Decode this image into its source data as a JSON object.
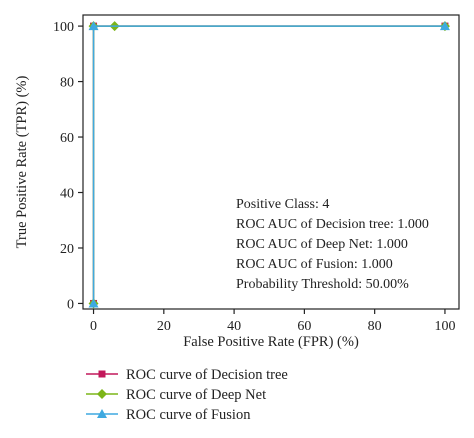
{
  "chart_data": {
    "type": "line",
    "title": "",
    "xlabel": "False Positive Rate (FPR) (%)",
    "ylabel": "True Positive Rate (TPR) (%)",
    "xlim": [
      -3,
      104
    ],
    "ylim": [
      -2,
      104
    ],
    "xticks": [
      0,
      20,
      40,
      60,
      80,
      100
    ],
    "yticks": [
      0,
      20,
      40,
      60,
      80,
      100
    ],
    "grid": false,
    "legend_position": "bottom",
    "series": [
      {
        "name": "ROC curve of Decision tree",
        "color": "#c2185b",
        "marker": "square",
        "x": [
          0,
          0,
          100
        ],
        "y": [
          0,
          100,
          100
        ]
      },
      {
        "name": "ROC curve of Deep Net",
        "color": "#7cb518",
        "marker": "diamond",
        "x": [
          0,
          0,
          6,
          100
        ],
        "y": [
          0,
          100,
          100,
          100
        ]
      },
      {
        "name": "ROC curve of Fusion",
        "color": "#3fa9e0",
        "marker": "triangle",
        "x": [
          0,
          0,
          100
        ],
        "y": [
          0,
          100,
          100
        ]
      }
    ],
    "annotations": [
      "Positive Class: 4",
      "ROC AUC of Decision tree: 1.000",
      "ROC AUC of Deep Net: 1.000",
      "ROC AUC of Fusion: 1.000",
      "Probability Threshold: 50.00%"
    ]
  }
}
